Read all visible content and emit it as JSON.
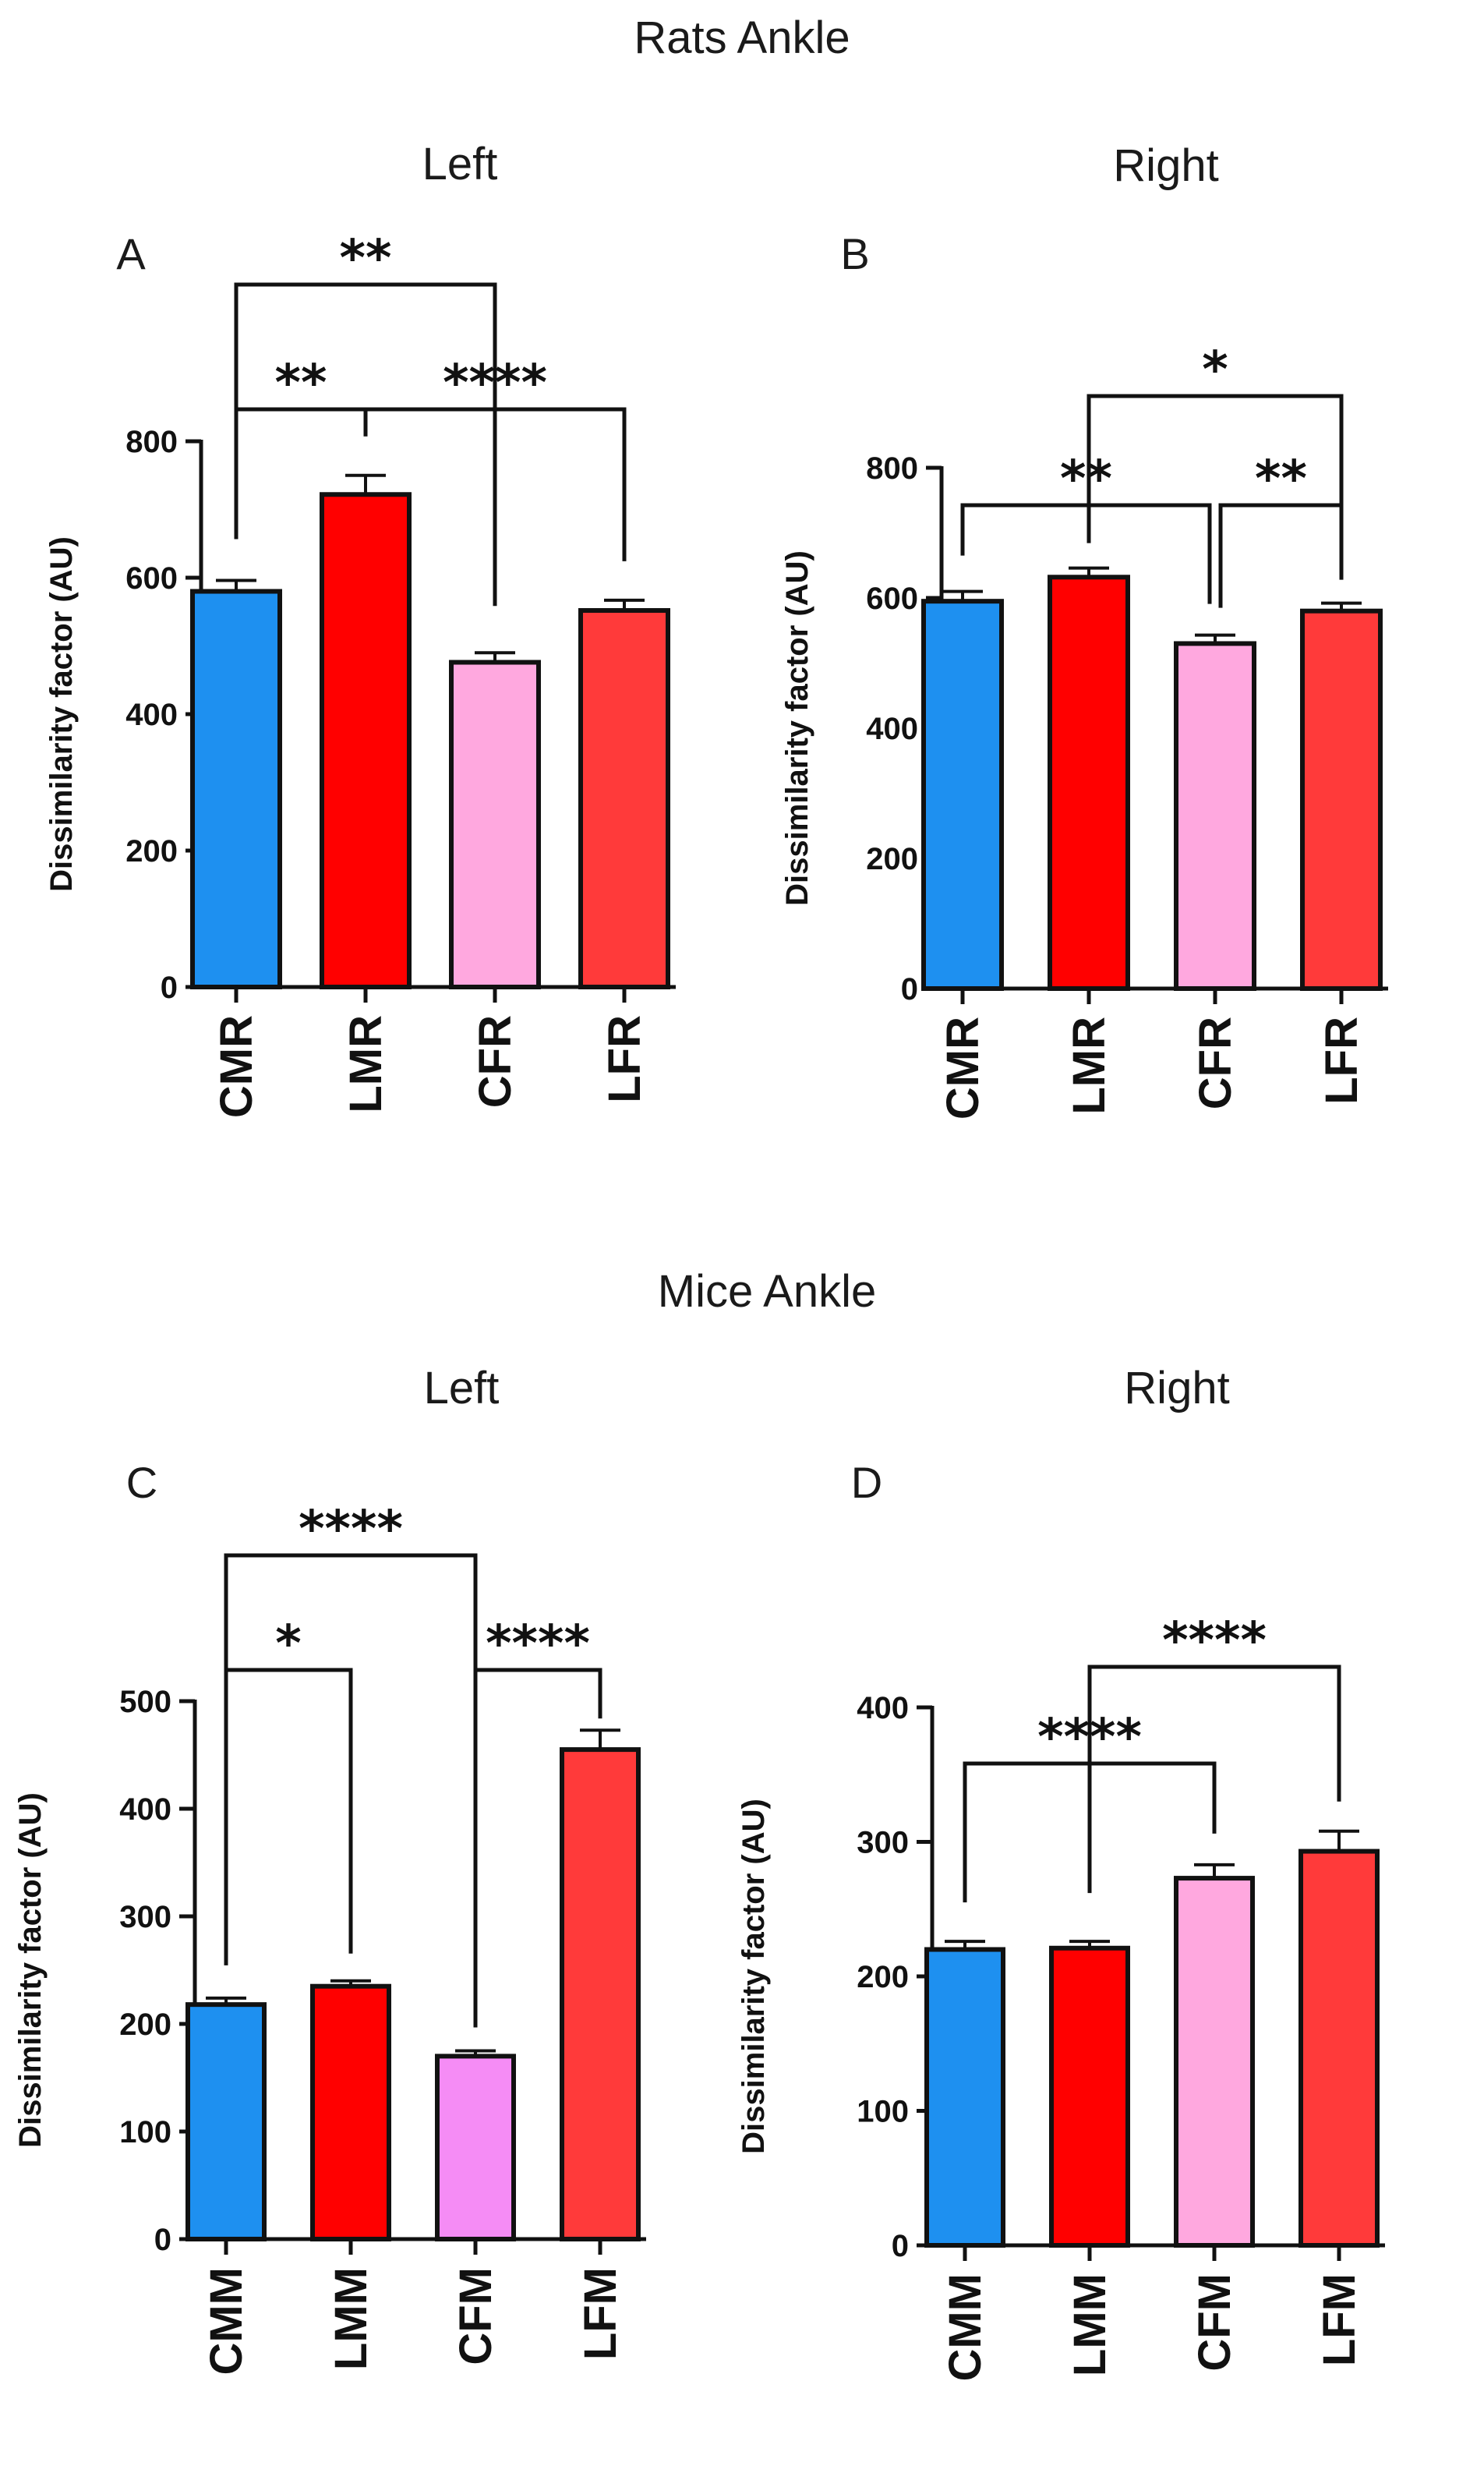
{
  "sections": [
    {
      "title": "Rats Ankle"
    },
    {
      "title": "Mice Ankle"
    }
  ],
  "chart_data": [
    {
      "type": "bar",
      "panel": "A",
      "subtitle": "Left",
      "categories": [
        "CMR",
        "LMR",
        "CFR",
        "LFR"
      ],
      "values": [
        580,
        722,
        476,
        552
      ],
      "errors": [
        16,
        28,
        14,
        15
      ],
      "colors": [
        "#1E90F0",
        "#FF0000",
        "#FFA8DF",
        "#FF3A3A"
      ],
      "ylabel": "Dissimilarity factor (AU)",
      "ylim": [
        0,
        800
      ],
      "yticks": [
        "0",
        "200",
        "400",
        "600",
        "800"
      ],
      "comparisons": [
        {
          "from": 0,
          "to": 2,
          "label": "**"
        },
        {
          "from": 0,
          "to": 1,
          "label": "**"
        },
        {
          "from": 1,
          "to": 3,
          "label": "****"
        }
      ]
    },
    {
      "type": "bar",
      "panel": "B",
      "subtitle": "Right",
      "categories": [
        "CMR",
        "LMR",
        "CFR",
        "LFR"
      ],
      "values": [
        595,
        632,
        530,
        580
      ],
      "errors": [
        15,
        14,
        13,
        12
      ],
      "colors": [
        "#1E90F0",
        "#FF0000",
        "#FFA8DF",
        "#FF3A3A"
      ],
      "ylabel": "Dissimilarity factor (AU)",
      "ylim": [
        0,
        800
      ],
      "yticks": [
        "0",
        "200",
        "400",
        "600",
        "800"
      ],
      "comparisons": [
        {
          "from": 1,
          "to": 3,
          "label": "*"
        },
        {
          "from": 0,
          "to": 2,
          "label": "**"
        },
        {
          "from": 2,
          "to": 3,
          "label": "**"
        }
      ]
    },
    {
      "type": "bar",
      "panel": "C",
      "subtitle": "Left",
      "categories": [
        "CMM",
        "LMM",
        "CFM",
        "LFM"
      ],
      "values": [
        218,
        235,
        170,
        455
      ],
      "errors": [
        6,
        5,
        5,
        18
      ],
      "colors": [
        "#1E90F0",
        "#FF0000",
        "#F58CF5",
        "#FF3A3A"
      ],
      "ylabel": "Dissimilarity factor (AU)",
      "ylim": [
        0,
        500
      ],
      "yticks": [
        "0",
        "100",
        "200",
        "300",
        "400",
        "500"
      ],
      "comparisons": [
        {
          "from": 0,
          "to": 2,
          "label": "****"
        },
        {
          "from": 0,
          "to": 1,
          "label": "*"
        },
        {
          "from": 2,
          "to": 3,
          "label": "****"
        }
      ]
    },
    {
      "type": "bar",
      "panel": "D",
      "subtitle": "Right",
      "categories": [
        "CMM",
        "LMM",
        "CFM",
        "LFM"
      ],
      "values": [
        220,
        221,
        273,
        293
      ],
      "errors": [
        6,
        5,
        10,
        15
      ],
      "colors": [
        "#1E90F0",
        "#FF0000",
        "#FFA8DF",
        "#FF3A3A"
      ],
      "ylabel": "Dissimilarity factor (AU)",
      "ylim": [
        0,
        400
      ],
      "yticks": [
        "0",
        "100",
        "200",
        "300",
        "400"
      ],
      "comparisons": [
        {
          "from": 1,
          "to": 3,
          "label": "****"
        },
        {
          "from": 0,
          "to": 2,
          "label": "****"
        }
      ]
    }
  ]
}
